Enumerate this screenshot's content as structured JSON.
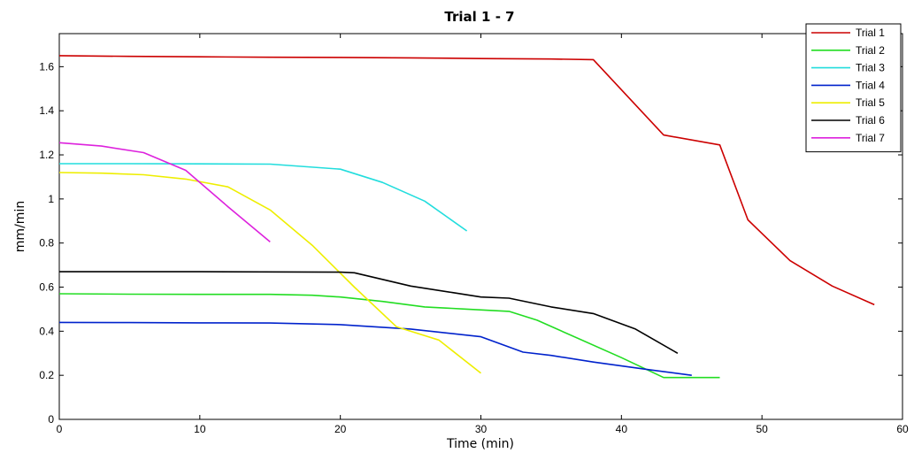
{
  "chart_data": {
    "type": "line",
    "title": "Trial 1 - 7",
    "xlabel": "Time (min)",
    "ylabel": "mm/min",
    "xlim": [
      0,
      60
    ],
    "ylim": [
      0,
      1.75
    ],
    "xticks": [
      0,
      10,
      20,
      30,
      40,
      50,
      60
    ],
    "yticks": [
      {
        "value": 0,
        "label": "0"
      },
      {
        "value": 0.2,
        "label": "0.2"
      },
      {
        "value": 0.4,
        "label": "0.4"
      },
      {
        "value": 0.6,
        "label": "0.6"
      },
      {
        "value": 0.8,
        "label": "0.8"
      },
      {
        "value": 1.0,
        "label": "1"
      },
      {
        "value": 1.2,
        "label": "1.2"
      },
      {
        "value": 1.4,
        "label": "1.4"
      },
      {
        "value": 1.6,
        "label": "1.6"
      }
    ],
    "grid": false,
    "legend_position": "top-right",
    "series": [
      {
        "name": "Trial 1",
        "color": "#cc0000",
        "x": [
          0,
          5,
          10,
          15,
          20,
          25,
          30,
          35,
          38,
          43,
          47,
          49,
          52,
          55,
          58
        ],
        "y": [
          1.65,
          1.647,
          1.645,
          1.643,
          1.642,
          1.64,
          1.637,
          1.635,
          1.632,
          1.29,
          1.245,
          0.905,
          0.72,
          0.605,
          0.52
        ]
      },
      {
        "name": "Trial 2",
        "color": "#22dd22",
        "x": [
          0,
          5,
          10,
          15,
          18,
          20,
          23,
          26,
          29,
          32,
          34,
          40,
          43,
          47
        ],
        "y": [
          0.57,
          0.568,
          0.567,
          0.567,
          0.563,
          0.555,
          0.535,
          0.51,
          0.5,
          0.49,
          0.45,
          0.28,
          0.19,
          0.19
        ]
      },
      {
        "name": "Trial 3",
        "color": "#22dddd",
        "x": [
          0,
          5,
          10,
          15,
          20,
          23,
          26,
          29
        ],
        "y": [
          1.16,
          1.16,
          1.159,
          1.158,
          1.135,
          1.075,
          0.99,
          0.855
        ]
      },
      {
        "name": "Trial 4",
        "color": "#0022cc",
        "x": [
          0,
          5,
          10,
          15,
          20,
          25,
          30,
          33,
          35,
          38,
          42,
          45
        ],
        "y": [
          0.44,
          0.439,
          0.438,
          0.437,
          0.43,
          0.41,
          0.375,
          0.305,
          0.29,
          0.26,
          0.225,
          0.2
        ]
      },
      {
        "name": "Trial 5",
        "color": "#eeee00",
        "x": [
          0,
          3,
          6,
          9,
          12,
          15,
          18,
          21,
          24,
          27,
          30
        ],
        "y": [
          1.12,
          1.117,
          1.11,
          1.09,
          1.055,
          0.95,
          0.79,
          0.6,
          0.42,
          0.36,
          0.21
        ]
      },
      {
        "name": "Trial 6",
        "color": "#000000",
        "x": [
          0,
          10,
          20,
          21,
          23,
          25,
          28,
          30,
          32,
          35,
          38,
          41,
          44
        ],
        "y": [
          0.67,
          0.67,
          0.668,
          0.665,
          0.635,
          0.605,
          0.575,
          0.555,
          0.55,
          0.51,
          0.48,
          0.41,
          0.3
        ]
      },
      {
        "name": "Trial 7",
        "color": "#dd22dd",
        "x": [
          0,
          3,
          6,
          9,
          12,
          15
        ],
        "y": [
          1.255,
          1.24,
          1.21,
          1.13,
          0.965,
          0.805
        ]
      }
    ]
  }
}
